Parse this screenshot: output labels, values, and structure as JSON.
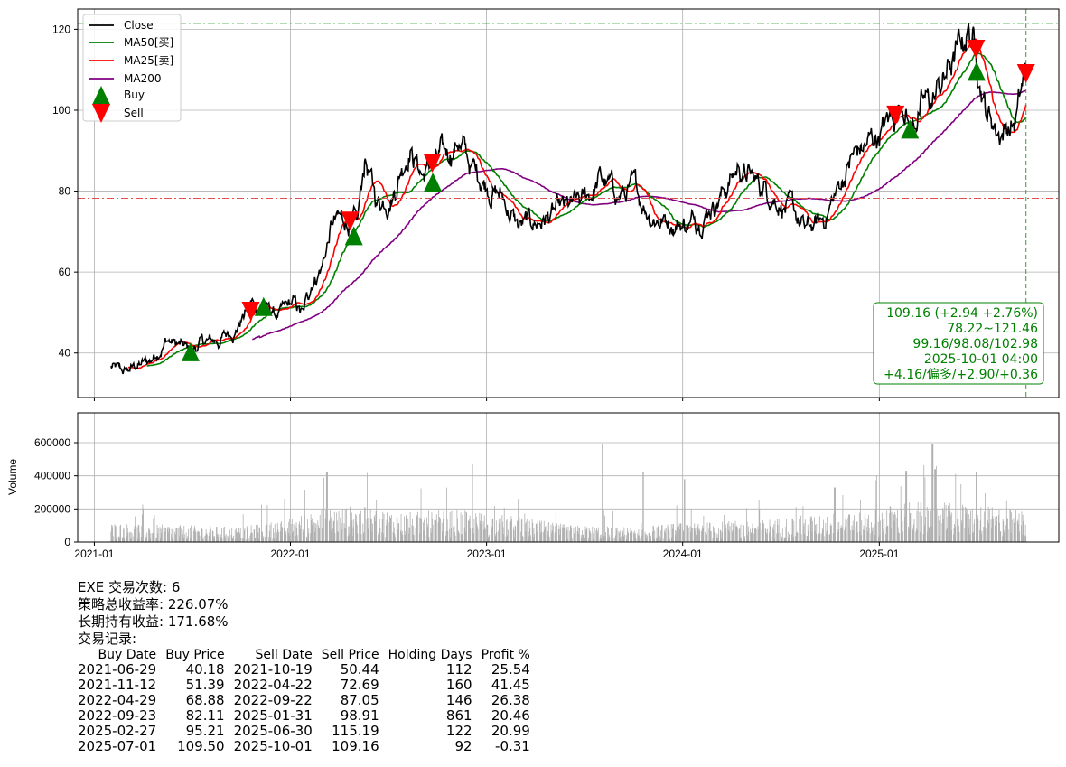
{
  "chart_data": [
    {
      "type": "line",
      "title": "",
      "xlabel": "",
      "ylabel": "",
      "ylim": [
        29,
        125
      ],
      "yticks": [
        40,
        60,
        80,
        100,
        120
      ],
      "xticks": [
        "2021-01",
        "2022-01",
        "2023-01",
        "2024-01",
        "2025-01"
      ],
      "grid": true,
      "legend": "top-left",
      "legend_entries": [
        "Close",
        "MA50[买]",
        "MA25[卖]",
        "MA200",
        "Buy",
        "Sell"
      ],
      "colors": {
        "Close": "#000000",
        "MA50": "#008000",
        "MA25": "#ff0000",
        "MA200": "#800080",
        "Buy": "#008000",
        "Sell": "#ff0000",
        "hline_high": "#32a032",
        "hline_low": "#e05050",
        "vline": "#32a032"
      },
      "close_keypoints": [
        [
          "2021-02-01",
          36.5
        ],
        [
          "2021-02-25",
          35.0
        ],
        [
          "2021-03-20",
          36.8
        ],
        [
          "2021-04-15",
          38.0
        ],
        [
          "2021-05-15",
          43.5
        ],
        [
          "2021-06-29",
          40.2
        ],
        [
          "2021-07-20",
          42.5
        ],
        [
          "2021-08-20",
          43.0
        ],
        [
          "2021-09-20",
          46.0
        ],
        [
          "2021-10-19",
          52.0
        ],
        [
          "2021-11-12",
          51.4
        ],
        [
          "2021-12-10",
          49.0
        ],
        [
          "2022-01-05",
          52.0
        ],
        [
          "2022-01-25",
          49.0
        ],
        [
          "2022-02-10",
          58.0
        ],
        [
          "2022-03-01",
          62.0
        ],
        [
          "2022-03-20",
          72.0
        ],
        [
          "2022-04-22",
          72.7
        ],
        [
          "2022-05-05",
          70.0
        ],
        [
          "2022-05-20",
          88.0
        ],
        [
          "2022-06-10",
          77.0
        ],
        [
          "2022-07-10",
          80.0
        ],
        [
          "2022-08-10",
          92.0
        ],
        [
          "2022-09-05",
          84.0
        ],
        [
          "2022-09-22",
          87.0
        ],
        [
          "2022-10-15",
          88.0
        ],
        [
          "2022-11-10",
          93.0
        ],
        [
          "2022-12-01",
          86.0
        ],
        [
          "2023-01-05",
          82.0
        ],
        [
          "2023-02-01",
          78.0
        ],
        [
          "2023-03-01",
          71.0
        ],
        [
          "2023-04-01",
          72.0
        ],
        [
          "2023-05-01",
          74.0
        ],
        [
          "2023-06-01",
          75.0
        ],
        [
          "2023-07-01",
          77.0
        ],
        [
          "2023-08-01",
          83.0
        ],
        [
          "2023-09-01",
          79.0
        ],
        [
          "2023-10-01",
          80.0
        ],
        [
          "2023-11-01",
          75.0
        ],
        [
          "2023-12-01",
          73.0
        ],
        [
          "2024-01-15",
          72.0
        ],
        [
          "2024-02-15",
          76.0
        ],
        [
          "2024-03-15",
          80.0
        ],
        [
          "2024-04-15",
          86.0
        ],
        [
          "2024-05-15",
          82.0
        ],
        [
          "2024-06-15",
          80.0
        ],
        [
          "2024-07-15",
          76.0
        ],
        [
          "2024-08-15",
          70.0
        ],
        [
          "2024-09-15",
          72.0
        ],
        [
          "2024-10-15",
          80.0
        ],
        [
          "2024-11-10",
          88.0
        ],
        [
          "2024-12-15",
          92.0
        ],
        [
          "2025-01-31",
          98.9
        ],
        [
          "2025-02-15",
          105.0
        ],
        [
          "2025-02-27",
          95.2
        ],
        [
          "2025-03-15",
          100.0
        ],
        [
          "2025-04-10",
          102.0
        ],
        [
          "2025-05-10",
          110.0
        ],
        [
          "2025-06-05",
          116.0
        ],
        [
          "2025-06-15",
          120.5
        ],
        [
          "2025-06-30",
          115.2
        ],
        [
          "2025-07-20",
          100.0
        ],
        [
          "2025-08-10",
          95.0
        ],
        [
          "2025-09-10",
          97.0
        ],
        [
          "2025-10-01",
          109.16
        ]
      ],
      "ma_start": {
        "MA25": "2021-03-20",
        "MA50": "2021-03-20",
        "MA200": "2021-10-22"
      },
      "buy_points": [
        {
          "date": "2021-06-29",
          "price": 40.18
        },
        {
          "date": "2021-11-12",
          "price": 51.39
        },
        {
          "date": "2022-04-29",
          "price": 68.88
        },
        {
          "date": "2022-09-23",
          "price": 82.11
        },
        {
          "date": "2025-02-27",
          "price": 95.21
        },
        {
          "date": "2025-07-01",
          "price": 109.5
        }
      ],
      "sell_points": [
        {
          "date": "2021-10-19",
          "price": 50.44
        },
        {
          "date": "2022-04-22",
          "price": 72.69
        },
        {
          "date": "2022-09-22",
          "price": 87.05
        },
        {
          "date": "2025-01-31",
          "price": 98.91
        },
        {
          "date": "2025-06-30",
          "price": 115.19
        },
        {
          "date": "2025-10-01",
          "price": 109.16
        }
      ],
      "hlines": [
        121.46,
        78.22
      ],
      "vline_date": "2025-10-01",
      "annotation": [
        "109.16 (+2.94 +2.76%)",
        "78.22~121.46",
        "99.16/98.08/102.98",
        "2025-10-01 04:00",
        "+4.16/偏多/+2.90/+0.36"
      ]
    },
    {
      "type": "bar",
      "ylabel": "Volume",
      "ylim": [
        0,
        780000
      ],
      "yticks": [
        "0",
        "200000",
        "400000",
        "600000"
      ],
      "xticks": [
        "2021-01",
        "2022-01",
        "2023-01",
        "2024-01",
        "2025-01"
      ],
      "grid": true,
      "color": "#b0b0b0",
      "volume_profile": [
        [
          "2021-02-01",
          90000
        ],
        [
          "2021-06-01",
          80000
        ],
        [
          "2021-10-01",
          70000
        ],
        [
          "2022-01-01",
          110000
        ],
        [
          "2022-03-01",
          160000
        ],
        [
          "2022-05-01",
          170000
        ],
        [
          "2022-08-01",
          140000
        ],
        [
          "2022-11-01",
          150000
        ],
        [
          "2023-02-01",
          130000
        ],
        [
          "2023-06-01",
          80000
        ],
        [
          "2023-10-01",
          70000
        ],
        [
          "2024-01-01",
          90000
        ],
        [
          "2024-05-01",
          100000
        ],
        [
          "2024-09-01",
          130000
        ],
        [
          "2024-12-01",
          150000
        ],
        [
          "2025-03-01",
          190000
        ],
        [
          "2025-06-01",
          180000
        ],
        [
          "2025-10-01",
          150000
        ]
      ],
      "volume_spikes": [
        [
          "2022-03-10",
          420000
        ],
        [
          "2022-12-05",
          470000
        ],
        [
          "2023-08-05",
          590000
        ],
        [
          "2023-10-20",
          420000
        ],
        [
          "2024-01-05",
          380000
        ],
        [
          "2025-02-20",
          430000
        ],
        [
          "2025-04-10",
          590000
        ],
        [
          "2025-04-15",
          440000
        ],
        [
          "2025-07-01",
          420000
        ],
        [
          "2024-10-10",
          330000
        ],
        [
          "2025-06-01",
          350000
        ]
      ]
    }
  ],
  "report": {
    "line1": "EXE 交易次数: 6",
    "line2": "策略总收益率: 226.07%",
    "line3": "长期持有收益: 171.68%",
    "line4": "交易记录:",
    "columns": [
      "Buy Date",
      "Buy Price",
      "Sell Date",
      "Sell Price",
      "Holding Days",
      "Profit %"
    ],
    "rows": [
      [
        "2021-06-29",
        "40.18",
        "2021-10-19",
        "50.44",
        "112",
        "25.54"
      ],
      [
        "2021-11-12",
        "51.39",
        "2022-04-22",
        "72.69",
        "160",
        "41.45"
      ],
      [
        "2022-04-29",
        "68.88",
        "2022-09-22",
        "87.05",
        "146",
        "26.38"
      ],
      [
        "2022-09-23",
        "82.11",
        "2025-01-31",
        "98.91",
        "861",
        "20.46"
      ],
      [
        "2025-02-27",
        "95.21",
        "2025-06-30",
        "115.19",
        "122",
        "20.99"
      ],
      [
        "2025-07-01",
        "109.50",
        "2025-10-01",
        "109.16",
        "92",
        "-0.31"
      ]
    ]
  }
}
